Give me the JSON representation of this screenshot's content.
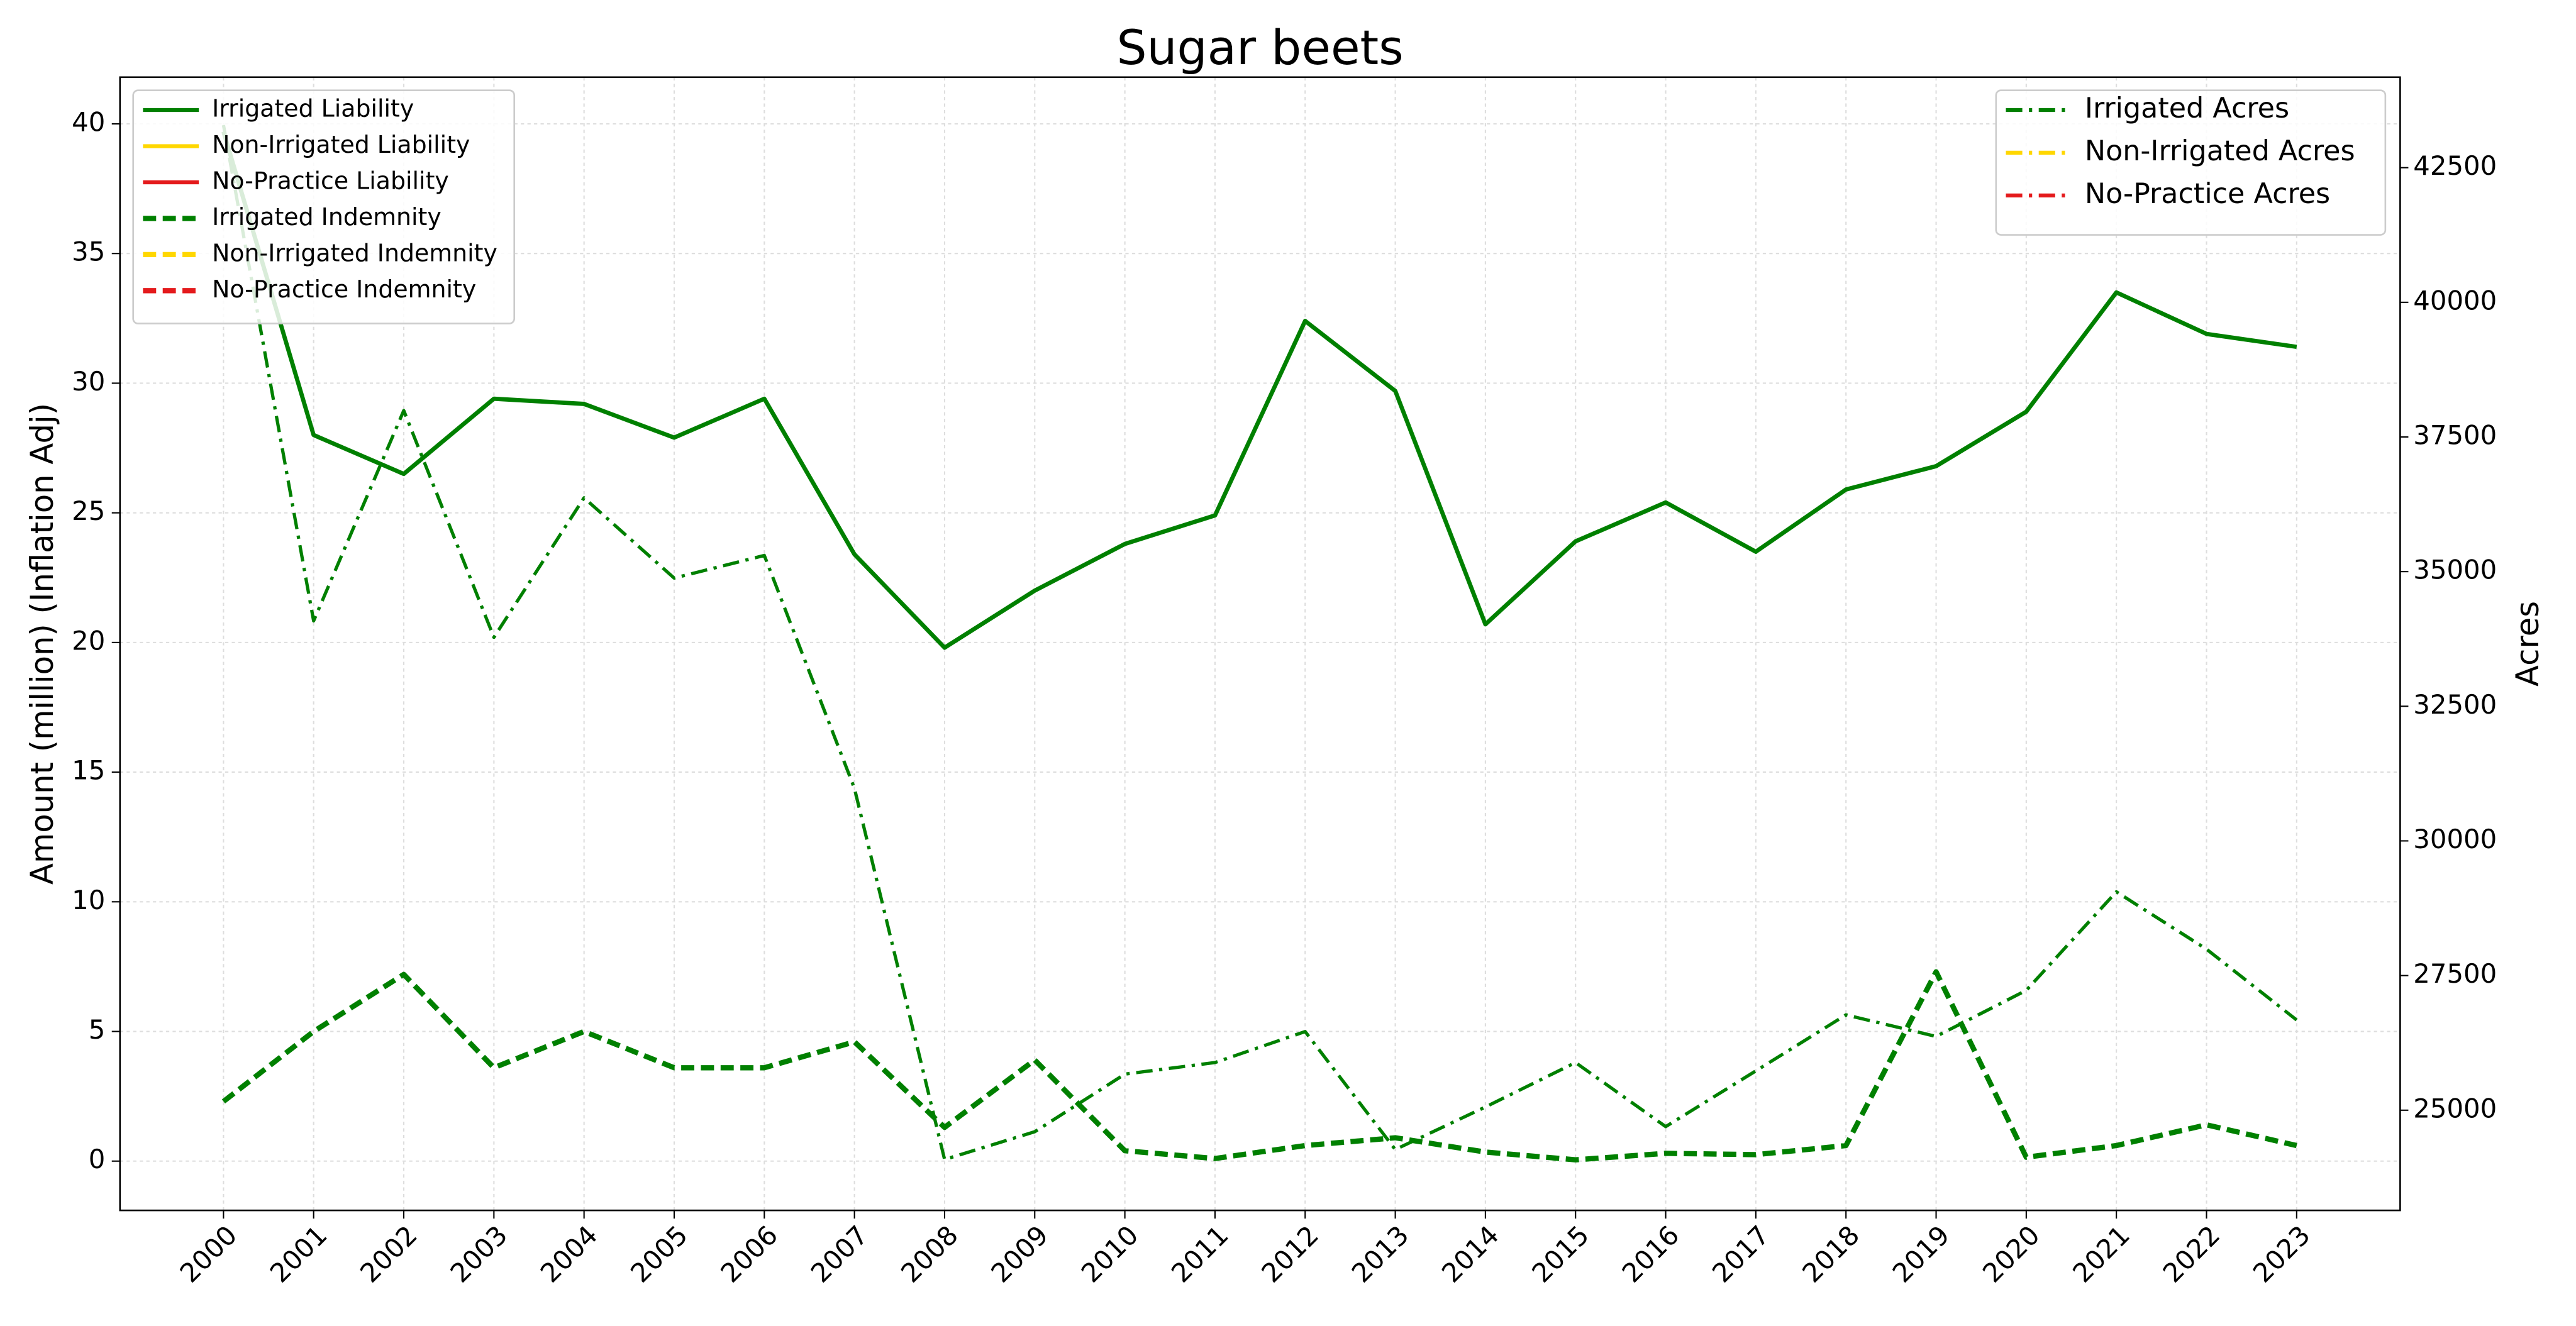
{
  "chart_data": {
    "type": "line",
    "title": "Sugar beets",
    "ylabel": "Amount (million) (Inflation Adj)",
    "y2label": "Acres",
    "categories": [
      "2000",
      "2001",
      "2002",
      "2003",
      "2004",
      "2005",
      "2006",
      "2007",
      "2008",
      "2009",
      "2010",
      "2011",
      "2012",
      "2013",
      "2014",
      "2015",
      "2016",
      "2017",
      "2018",
      "2019",
      "2020",
      "2021",
      "2022",
      "2023"
    ],
    "ylim": [
      -1.9,
      41.8
    ],
    "yticks": [
      0,
      5,
      10,
      15,
      20,
      25,
      30,
      35,
      40
    ],
    "y2lim": [
      23140,
      44180
    ],
    "y2ticks": [
      25000,
      27500,
      30000,
      32500,
      35000,
      37500,
      40000,
      42500
    ],
    "grid": true,
    "legend_loc": "upper left",
    "legend2_loc": "upper right",
    "series": [
      {
        "name": "Irrigated Liability",
        "color": "#008000",
        "linestyle": "solid",
        "axis": "y",
        "values": [
          39.7,
          28.0,
          26.5,
          29.4,
          29.2,
          27.9,
          29.4,
          23.4,
          19.8,
          22.0,
          23.8,
          24.9,
          32.4,
          29.7,
          20.7,
          23.9,
          25.4,
          23.5,
          25.9,
          26.8,
          28.9,
          33.5,
          31.9,
          31.4
        ]
      },
      {
        "name": "Non-Irrigated Liability",
        "color": "#ffd700",
        "linestyle": "solid",
        "axis": "y",
        "values": [
          null,
          null,
          null,
          null,
          null,
          null,
          null,
          null,
          null,
          null,
          null,
          null,
          null,
          null,
          null,
          null,
          null,
          null,
          null,
          null,
          null,
          null,
          null,
          null
        ]
      },
      {
        "name": "No-Practice Liability",
        "color": "#e41a1c",
        "linestyle": "solid",
        "axis": "y",
        "values": [
          null,
          null,
          null,
          null,
          null,
          null,
          null,
          null,
          null,
          null,
          null,
          null,
          null,
          null,
          null,
          null,
          null,
          null,
          null,
          null,
          null,
          null,
          null,
          null
        ]
      },
      {
        "name": "Irrigated Indemnity",
        "color": "#008000",
        "linestyle": "dashed",
        "axis": "y",
        "values": [
          2.3,
          5.0,
          7.2,
          3.6,
          5.0,
          3.6,
          3.6,
          4.6,
          1.3,
          3.9,
          0.4,
          0.1,
          0.6,
          0.9,
          0.35,
          0.05,
          0.3,
          0.25,
          0.6,
          7.3,
          0.15,
          0.6,
          1.4,
          0.6
        ]
      },
      {
        "name": "Non-Irrigated Indemnity",
        "color": "#ffd700",
        "linestyle": "dashed",
        "axis": "y",
        "values": [
          null,
          null,
          null,
          null,
          null,
          null,
          null,
          null,
          null,
          null,
          null,
          null,
          null,
          null,
          null,
          null,
          null,
          null,
          null,
          null,
          null,
          null,
          null,
          null
        ]
      },
      {
        "name": "No-Practice Indemnity",
        "color": "#e41a1c",
        "linestyle": "dashed",
        "axis": "y",
        "values": [
          null,
          null,
          null,
          null,
          null,
          null,
          null,
          null,
          null,
          null,
          null,
          null,
          null,
          null,
          null,
          null,
          null,
          null,
          null,
          null,
          null,
          null,
          null,
          null
        ]
      },
      {
        "name": "Irrigated Acres",
        "color": "#008000",
        "linestyle": "dashdot",
        "axis": "y2",
        "values": [
          43290,
          34085,
          37990,
          33780,
          36370,
          34880,
          35300,
          30975,
          24085,
          24600,
          25670,
          25885,
          26460,
          24270,
          25060,
          25885,
          24695,
          25730,
          26770,
          26370,
          27225,
          29055,
          27990,
          26675
        ]
      },
      {
        "name": "Non-Irrigated Acres",
        "color": "#ffd700",
        "linestyle": "dashdot",
        "axis": "y2",
        "values": [
          null,
          null,
          null,
          null,
          null,
          null,
          null,
          null,
          null,
          null,
          null,
          null,
          null,
          null,
          null,
          null,
          null,
          null,
          null,
          null,
          null,
          null,
          null,
          null
        ]
      },
      {
        "name": "No-Practice Acres",
        "color": "#e41a1c",
        "linestyle": "dashdot",
        "axis": "y2",
        "values": [
          null,
          null,
          null,
          null,
          null,
          null,
          null,
          null,
          null,
          null,
          null,
          null,
          null,
          null,
          null,
          null,
          null,
          null,
          null,
          null,
          null,
          null,
          null,
          null
        ]
      }
    ]
  }
}
